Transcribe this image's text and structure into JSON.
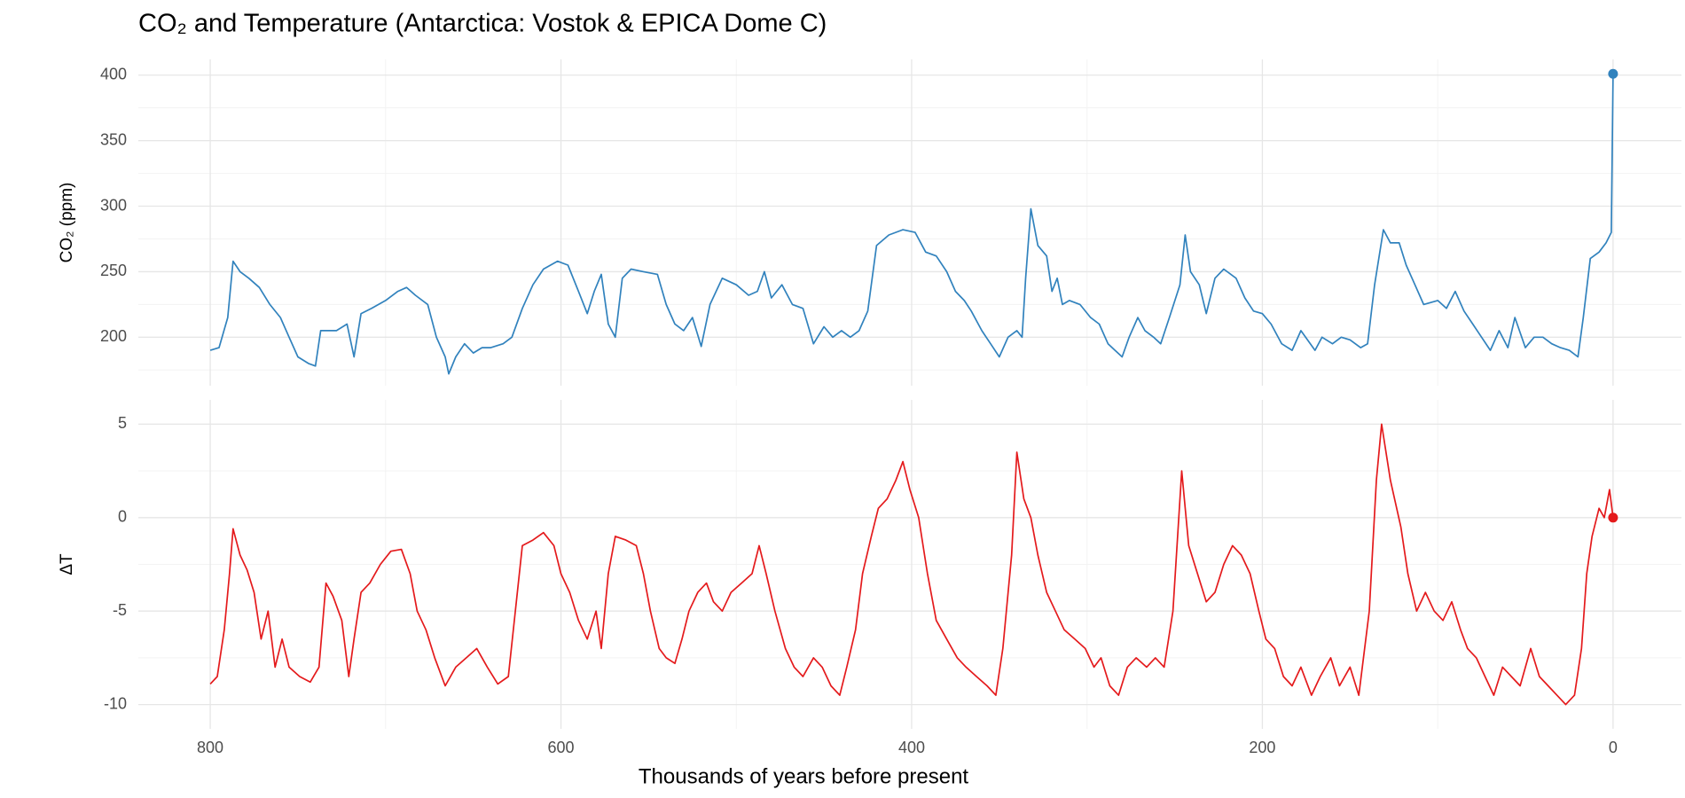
{
  "chart_data": [
    {
      "type": "line",
      "title": "CO₂ and Temperature (Antarctica: Vostok & EPICA Dome C)",
      "y_label": "CO₂ (ppm)",
      "xlim": [
        841,
        -39
      ],
      "xticks": [
        800,
        600,
        400,
        200,
        0
      ],
      "xminor": [
        700,
        500,
        300,
        100
      ],
      "ylim": [
        163,
        412
      ],
      "yticks": [
        200,
        250,
        300,
        350,
        400
      ],
      "yminor": [
        175,
        225,
        275,
        325,
        375
      ],
      "grid": true,
      "x": [
        800,
        795,
        790,
        787,
        783,
        778,
        772,
        766,
        760,
        755,
        750,
        744,
        740,
        737,
        733,
        728,
        722,
        718,
        714,
        708,
        700,
        693,
        688,
        683,
        676,
        671,
        666,
        664,
        660,
        655,
        650,
        645,
        640,
        633,
        628,
        622,
        616,
        610,
        602,
        596,
        590,
        585,
        581,
        577,
        573,
        569,
        565,
        560,
        553,
        545,
        540,
        535,
        530,
        525,
        520,
        515,
        508,
        500,
        493,
        488,
        484,
        480,
        474,
        468,
        462,
        456,
        450,
        445,
        440,
        435,
        430,
        425,
        420,
        413,
        405,
        398,
        392,
        386,
        380,
        375,
        370,
        366,
        360,
        355,
        350,
        345,
        340,
        337,
        335,
        332,
        328,
        323,
        320,
        317,
        314,
        310,
        304,
        298,
        293,
        288,
        284,
        280,
        276,
        271,
        267,
        262,
        258,
        253,
        247,
        244,
        241,
        236,
        232,
        227,
        222,
        215,
        210,
        205,
        200,
        195,
        189,
        183,
        178,
        170,
        166,
        160,
        155,
        150,
        144,
        140,
        136,
        131,
        127,
        122,
        118,
        113,
        108,
        100,
        95,
        90,
        85,
        80,
        75,
        70,
        65,
        60,
        56,
        50,
        45,
        40,
        35,
        30,
        25,
        20,
        17,
        13,
        8,
        4,
        1,
        0
      ],
      "series": [
        {
          "color": "#3182bd",
          "values": [
            190,
            192,
            215,
            258,
            250,
            245,
            238,
            225,
            215,
            200,
            185,
            180,
            178,
            205,
            205,
            205,
            210,
            185,
            218,
            222,
            228,
            235,
            238,
            232,
            225,
            200,
            185,
            172,
            185,
            195,
            188,
            192,
            192,
            195,
            200,
            222,
            240,
            252,
            258,
            255,
            235,
            218,
            235,
            248,
            210,
            200,
            245,
            252,
            250,
            248,
            225,
            210,
            205,
            215,
            193,
            225,
            245,
            240,
            232,
            235,
            250,
            230,
            240,
            225,
            222,
            195,
            208,
            200,
            205,
            200,
            205,
            220,
            270,
            278,
            282,
            280,
            265,
            262,
            250,
            235,
            228,
            220,
            205,
            195,
            185,
            200,
            205,
            200,
            245,
            298,
            270,
            262,
            235,
            245,
            225,
            228,
            225,
            215,
            210,
            195,
            190,
            185,
            200,
            215,
            205,
            200,
            195,
            215,
            240,
            278,
            250,
            240,
            218,
            245,
            252,
            245,
            230,
            220,
            218,
            210,
            195,
            190,
            205,
            190,
            200,
            195,
            200,
            198,
            192,
            195,
            240,
            282,
            272,
            272,
            255,
            240,
            225,
            228,
            222,
            235,
            220,
            210,
            200,
            190,
            205,
            192,
            215,
            192,
            200,
            200,
            195,
            192,
            190,
            185,
            215,
            260,
            265,
            272,
            280,
            401
          ]
        }
      ],
      "point": {
        "x": 0,
        "y": 401
      }
    },
    {
      "type": "line",
      "y_label": "ΔT",
      "x_label": "Thousands of years before present",
      "xlim": [
        841,
        -39
      ],
      "xticks": [
        800,
        600,
        400,
        200,
        0
      ],
      "xminor": [
        700,
        500,
        300,
        100
      ],
      "ylim": [
        -11.3,
        6.3
      ],
      "yticks": [
        -10,
        -5,
        0,
        5
      ],
      "yminor": [
        -7.5,
        -2.5,
        2.5
      ],
      "grid": true,
      "x": [
        800,
        796,
        792,
        789,
        787,
        783,
        779,
        775,
        771,
        767,
        763,
        759,
        755,
        749,
        743,
        738,
        734,
        730,
        725,
        721,
        718,
        714,
        709,
        703,
        697,
        691,
        686,
        682,
        677,
        672,
        666,
        660,
        654,
        648,
        642,
        636,
        630,
        626,
        622,
        616,
        610,
        604,
        600,
        595,
        590,
        585,
        580,
        577,
        573,
        569,
        563,
        557,
        553,
        549,
        544,
        540,
        535,
        531,
        527,
        522,
        517,
        513,
        508,
        503,
        497,
        491,
        487,
        483,
        478,
        472,
        467,
        462,
        456,
        451,
        446,
        441,
        437,
        432,
        428,
        423,
        419,
        414,
        409,
        405,
        401,
        396,
        391,
        386,
        380,
        374,
        369,
        363,
        357,
        352,
        348,
        343,
        340,
        336,
        332,
        328,
        323,
        318,
        313,
        307,
        301,
        296,
        292,
        287,
        282,
        277,
        272,
        266,
        261,
        256,
        251,
        246,
        242,
        237,
        232,
        227,
        222,
        217,
        212,
        207,
        202,
        198,
        193,
        188,
        183,
        178,
        172,
        167,
        161,
        156,
        150,
        145,
        139,
        135,
        132,
        127,
        121,
        117,
        112,
        107,
        102,
        97,
        92,
        87,
        83,
        78,
        73,
        68,
        63,
        58,
        53,
        47,
        42,
        37,
        32,
        27,
        22,
        18,
        15,
        12,
        8,
        5,
        2,
        0
      ],
      "series": [
        {
          "color": "#e41a1c",
          "values": [
            -8.9,
            -8.5,
            -6,
            -3,
            -0.6,
            -2,
            -2.8,
            -4,
            -6.5,
            -5,
            -8,
            -6.5,
            -8,
            -8.5,
            -8.8,
            -8,
            -3.5,
            -4.2,
            -5.5,
            -8.5,
            -6.5,
            -4,
            -3.5,
            -2.5,
            -1.8,
            -1.7,
            -3,
            -5,
            -6,
            -7.5,
            -9,
            -8,
            -7.5,
            -7,
            -8,
            -8.9,
            -8.5,
            -5,
            -1.5,
            -1.2,
            -0.8,
            -1.5,
            -3,
            -4,
            -5.5,
            -6.5,
            -5,
            -7,
            -3,
            -1,
            -1.2,
            -1.5,
            -3,
            -5,
            -7,
            -7.5,
            -7.8,
            -6.5,
            -5,
            -4,
            -3.5,
            -4.5,
            -5,
            -4,
            -3.5,
            -3,
            -1.5,
            -3,
            -5,
            -7,
            -8,
            -8.5,
            -7.5,
            -8,
            -9,
            -9.5,
            -8,
            -6,
            -3,
            -1,
            0.5,
            1,
            2,
            3,
            1.5,
            0,
            -3,
            -5.5,
            -6.5,
            -7.5,
            -8,
            -8.5,
            -9,
            -9.5,
            -7,
            -2,
            3.5,
            1,
            0,
            -2,
            -4,
            -5,
            -6,
            -6.5,
            -7,
            -8,
            -7.5,
            -9,
            -9.5,
            -8,
            -7.5,
            -8,
            -7.5,
            -8,
            -5,
            2.5,
            -1.5,
            -3,
            -4.5,
            -4,
            -2.5,
            -1.5,
            -2,
            -3,
            -5,
            -6.5,
            -7,
            -8.5,
            -9,
            -8,
            -9.5,
            -8.5,
            -7.5,
            -9,
            -8,
            -9.5,
            -5,
            2,
            5,
            2,
            -0.5,
            -3,
            -5,
            -4,
            -5,
            -5.5,
            -4.5,
            -6,
            -7,
            -7.5,
            -8.5,
            -9.5,
            -8,
            -8.5,
            -9,
            -7,
            -8.5,
            -9,
            -9.5,
            -10,
            -9.5,
            -7,
            -3,
            -1,
            0.5,
            0,
            1.5,
            0
          ]
        }
      ],
      "point": {
        "x": 0,
        "y": 0
      }
    }
  ]
}
